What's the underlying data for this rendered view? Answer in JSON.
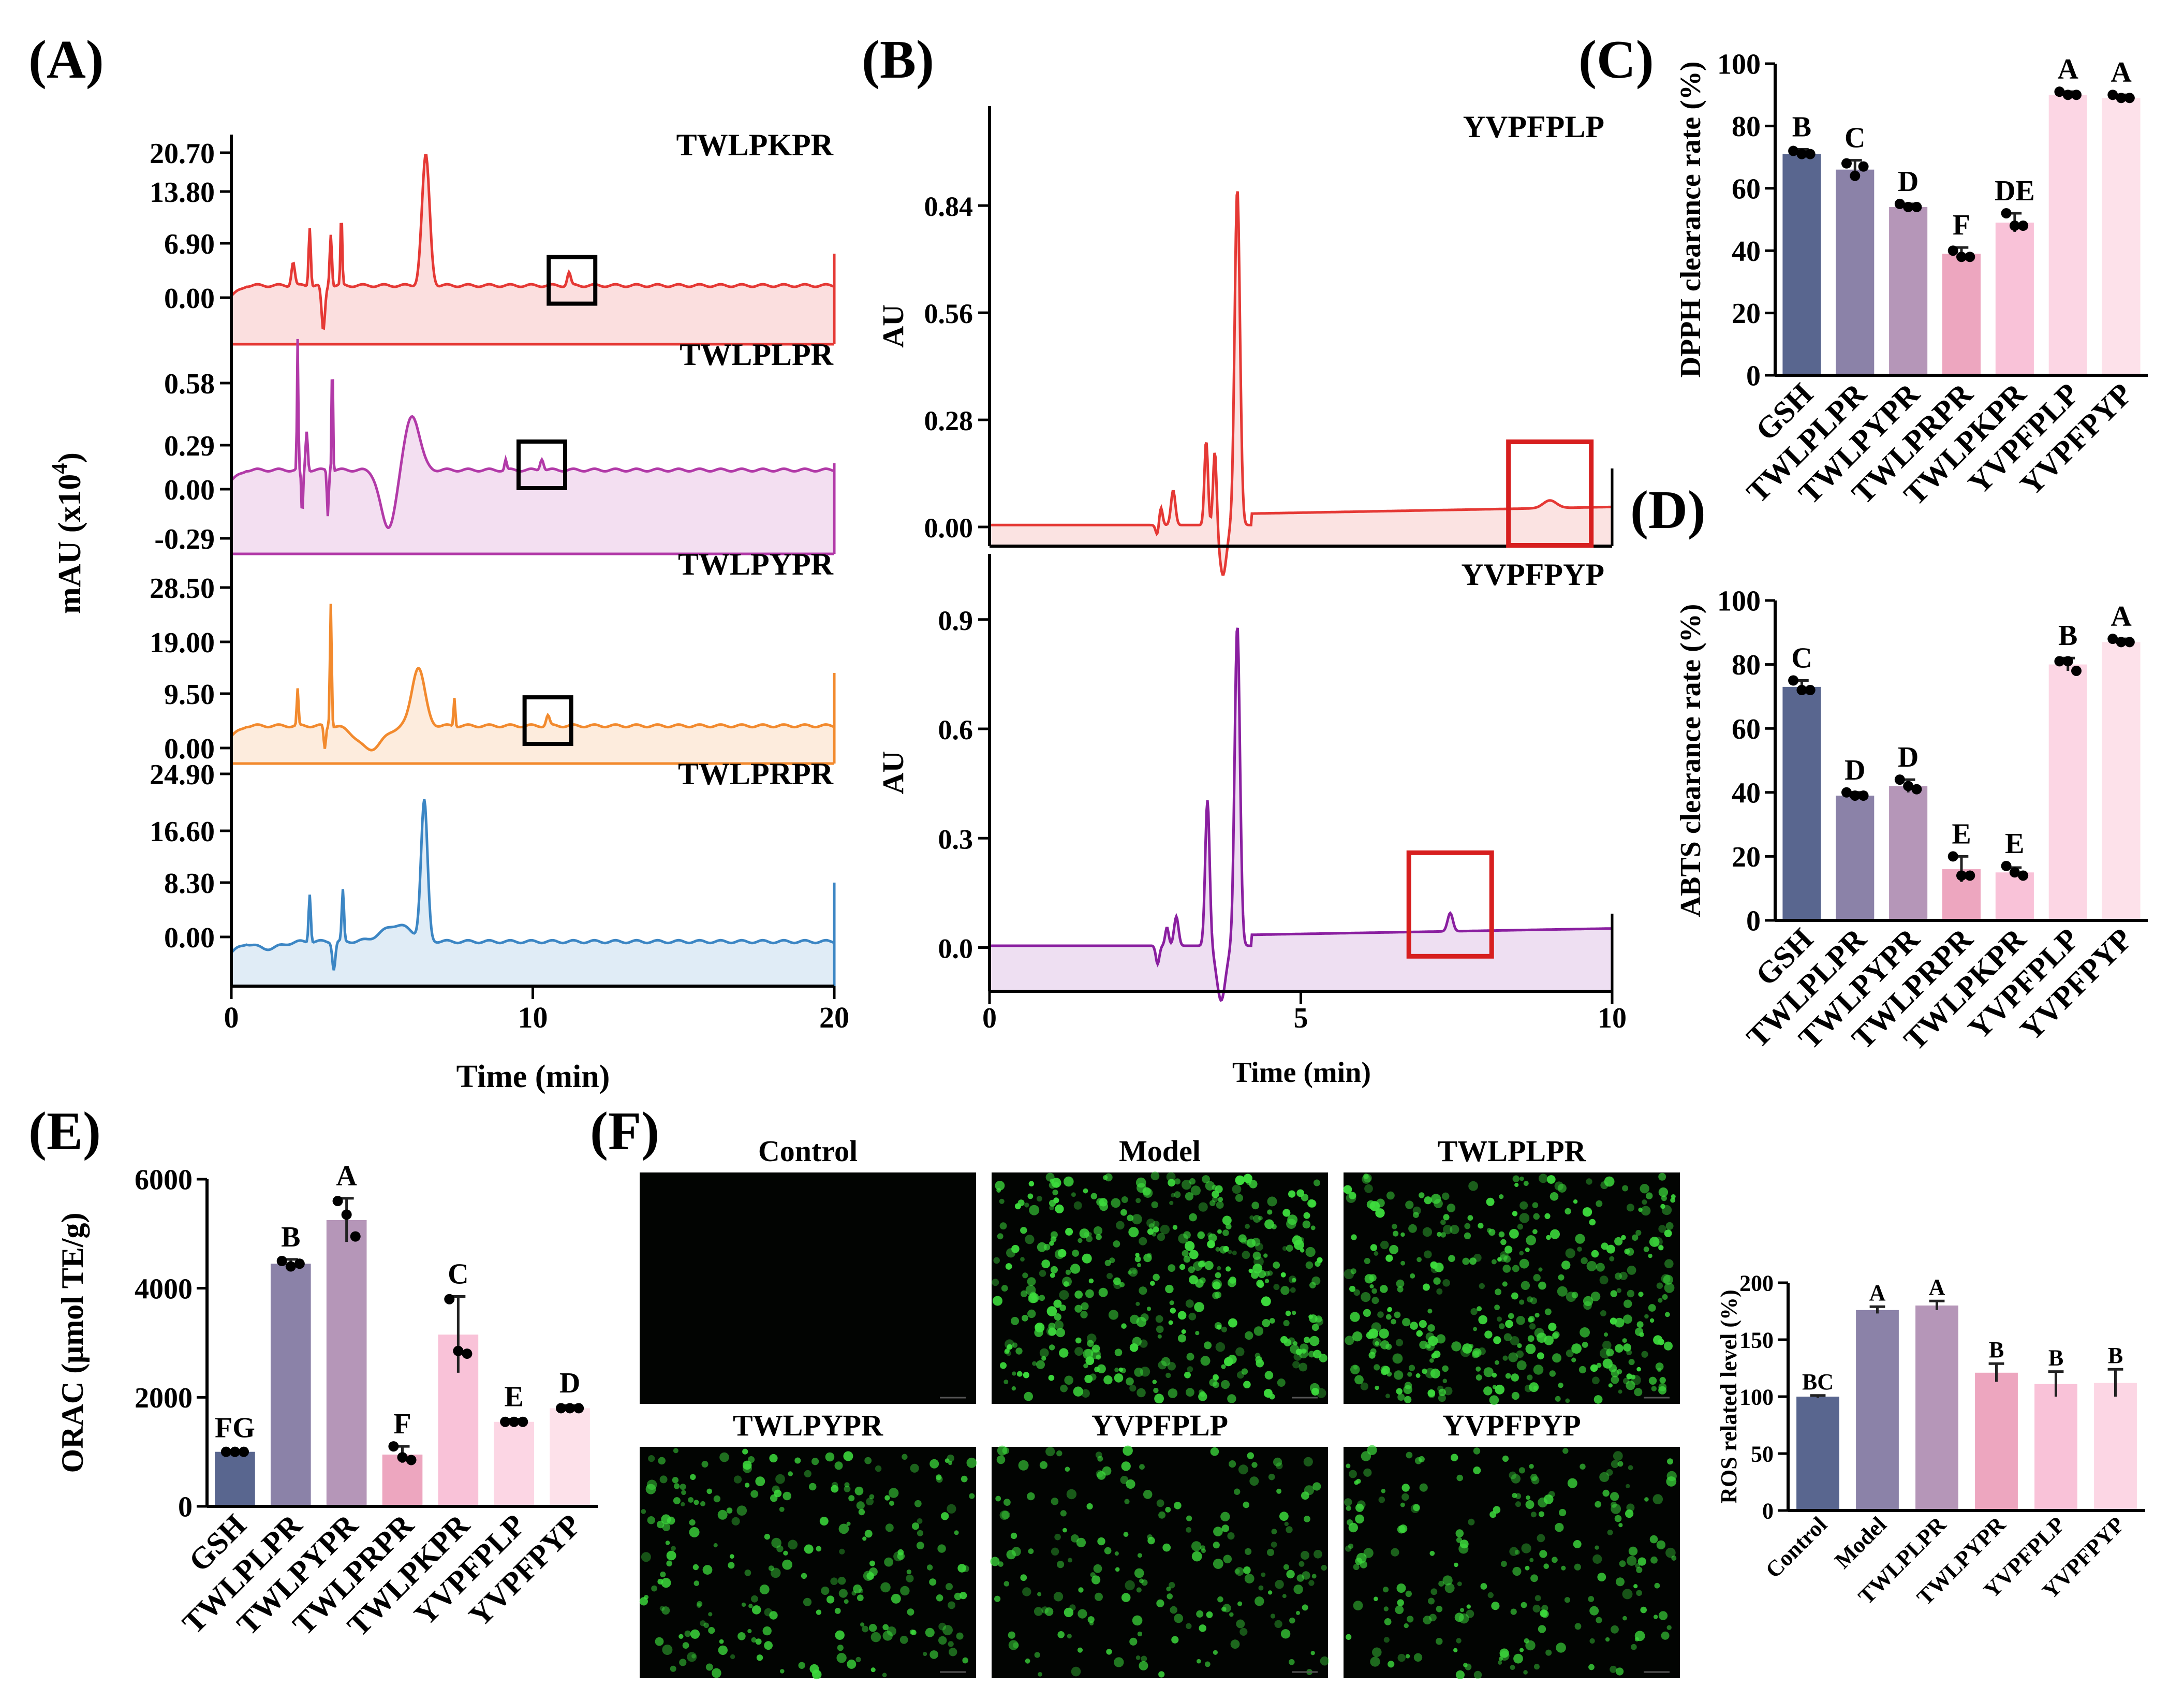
{
  "colors": {
    "red": "#e53935",
    "magenta": "#b23aa8",
    "orange": "#f28a2e",
    "blue": "#3c86c4",
    "purple": "#8a1fa0",
    "box_red": "#d71f1f",
    "green_cell": "#3ddc3d",
    "bars": [
      "#59668f",
      "#8b82a8",
      "#b596b8",
      "#eda6bf",
      "#f9c2d8",
      "#fcd6e4",
      "#fde1ea"
    ]
  },
  "chart_data": [
    {
      "panel": "(A)",
      "type": "line",
      "xlabel": "Time (min)",
      "ylabel": "mAU (x10",
      "ylabel_sup": "4",
      "ylabel_close": ")",
      "xlim": [
        0,
        20
      ],
      "xticks": [
        "0",
        "10",
        "20"
      ],
      "series": [
        {
          "name": "TWLPKPR",
          "yticks": [
            "20.70",
            "13.80",
            "6.90",
            "0.00"
          ],
          "color": "#e53935",
          "marker_time": 11.3
        },
        {
          "name": "TWLPLPR",
          "yticks": [
            "0.58",
            "0.29",
            "0.00",
            "-0.29"
          ],
          "color": "#b23aa8",
          "marker_time": 10.3
        },
        {
          "name": "TWLPYPR",
          "yticks": [
            "28.50",
            "19.00",
            "9.50",
            "0.00"
          ],
          "color": "#f28a2e",
          "marker_time": 10.5
        },
        {
          "name": "TWLPRPR",
          "yticks": [
            "24.90",
            "16.60",
            "8.30",
            "0.00"
          ],
          "color": "#3c86c4",
          "marker_time": null
        }
      ]
    },
    {
      "panel": "(B)",
      "type": "line",
      "xlabel": "Time (min)",
      "xlim": [
        0,
        10
      ],
      "xticks": [
        "0",
        "5",
        "10"
      ],
      "series": [
        {
          "name": "YVPFPLP",
          "ylabel": "AU",
          "yticks": [
            "0.84",
            "0.56",
            "0.28",
            "0.00"
          ],
          "ylim": [
            -0.05,
            1.1
          ],
          "color": "#e53935",
          "marker_time": 9.0
        },
        {
          "name": "YVPFPYP",
          "ylabel": "AU",
          "yticks": [
            "0.9",
            "0.6",
            "0.3",
            "0.0"
          ],
          "ylim": [
            -0.12,
            1.08
          ],
          "color": "#8a1fa0",
          "marker_time": 7.4
        }
      ]
    },
    {
      "panel": "(C)",
      "type": "bar",
      "ylabel": "DPPH clearance rate (%)",
      "ylim": [
        0,
        100
      ],
      "yticks": [
        "0",
        "20",
        "40",
        "60",
        "80",
        "100"
      ],
      "categories": [
        "GSH",
        "TWLPLPR",
        "TWLPYPR",
        "TWLPRPR",
        "TWLPKPR",
        "YVPFPLP",
        "YVPFPYP"
      ],
      "values": [
        71,
        66,
        54,
        39,
        49,
        90,
        89
      ],
      "errors": [
        1.5,
        3,
        1,
        2,
        3,
        1,
        1
      ],
      "letters": [
        "B",
        "C",
        "D",
        "F",
        "DE",
        "A",
        "A"
      ],
      "points": [
        [
          72,
          71,
          71
        ],
        [
          68,
          64,
          67
        ],
        [
          55,
          54,
          54
        ],
        [
          40,
          38,
          38
        ],
        [
          52,
          48,
          48
        ],
        [
          91,
          90,
          90
        ],
        [
          90,
          89,
          89
        ]
      ]
    },
    {
      "panel": "(D)",
      "type": "bar",
      "ylabel": "ABTS clearance rate (%)",
      "ylim": [
        0,
        100
      ],
      "yticks": [
        "0",
        "20",
        "40",
        "60",
        "80",
        "100"
      ],
      "categories": [
        "GSH",
        "TWLPLPR",
        "TWLPYPR",
        "TWLPRPR",
        "TWLPKPR",
        "YVPFPLP",
        "YVPFPYP"
      ],
      "values": [
        73,
        39,
        42,
        16,
        15,
        80,
        87
      ],
      "errors": [
        2,
        1,
        2,
        4,
        1.5,
        2,
        1
      ],
      "letters": [
        "C",
        "D",
        "D",
        "E",
        "E",
        "B",
        "A"
      ],
      "points": [
        [
          75,
          72,
          72
        ],
        [
          40,
          39,
          39
        ],
        [
          44,
          42,
          41
        ],
        [
          20,
          14,
          14
        ],
        [
          17,
          15,
          14
        ],
        [
          81,
          81,
          78
        ],
        [
          88,
          87,
          87
        ]
      ]
    },
    {
      "panel": "(E)",
      "type": "bar",
      "ylabel": "ORAC (μmol TE/g)",
      "ylim": [
        0,
        6000
      ],
      "yticks": [
        "0",
        "2000",
        "4000",
        "6000"
      ],
      "categories": [
        "GSH",
        "TWLPLPR",
        "TWLPYPR",
        "TWLPRPR",
        "TWLPKPR",
        "YVPFPLP",
        "YVPFPYP"
      ],
      "values": [
        1000,
        4450,
        5250,
        950,
        3150,
        1550,
        1800
      ],
      "errors": [
        30,
        80,
        400,
        150,
        700,
        50,
        50
      ],
      "letters": [
        "FG",
        "B",
        "A",
        "F",
        "C",
        "E",
        "D"
      ],
      "points": [
        [
          1000,
          1000,
          1000
        ],
        [
          4500,
          4400,
          4450
        ],
        [
          5600,
          5350,
          4950
        ],
        [
          1100,
          900,
          850
        ],
        [
          3800,
          2850,
          2800
        ],
        [
          1550,
          1550,
          1550
        ],
        [
          1800,
          1800,
          1800
        ]
      ]
    },
    {
      "panel": "(F)",
      "type": "bar",
      "ylabel": "ROS related  level (%)",
      "ylim": [
        0,
        200
      ],
      "yticks": [
        "0",
        "50",
        "100",
        "150",
        "200"
      ],
      "categories": [
        "Control",
        "Model",
        "TWLPLPR",
        "TWLPYPR",
        "YVPFPLP",
        "YVPFPYP"
      ],
      "values": [
        100,
        176,
        180,
        121,
        111,
        112
      ],
      "errors": [
        1,
        3,
        4,
        8,
        11,
        12
      ],
      "letters": [
        "BC",
        "A",
        "A",
        "B",
        "B",
        "B"
      ],
      "image_titles": [
        "Control",
        "Model",
        "TWLPLPR",
        "TWLPYPR",
        "YVPFPLP",
        "YVPFPYP"
      ],
      "image_density": [
        0,
        1.0,
        0.9,
        0.55,
        0.45,
        0.5
      ]
    }
  ],
  "panel_labels": [
    "(A)",
    "(B)",
    "(C)",
    "(D)",
    "(E)",
    "(F)"
  ]
}
